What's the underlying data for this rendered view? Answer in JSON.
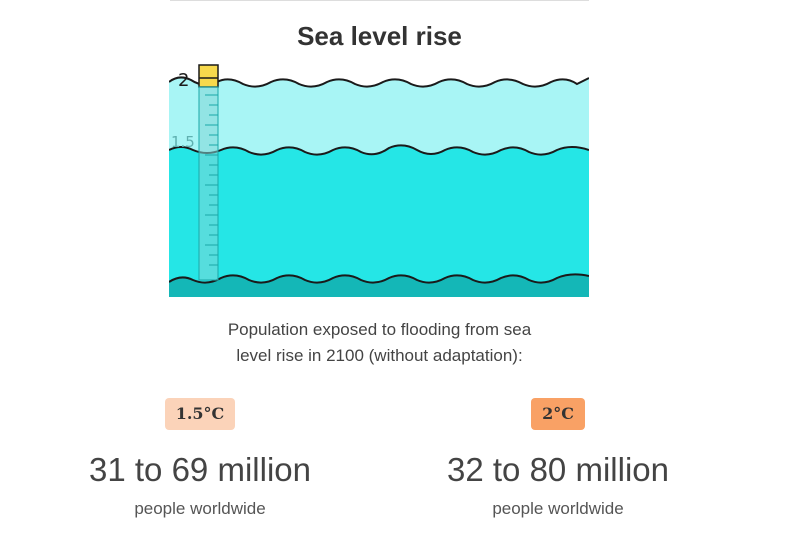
{
  "title": "Sea level rise",
  "illustration": {
    "gauge_labels": [
      "2",
      "1.5"
    ],
    "colors": {
      "water_2c": "#a8f5f5",
      "water_15c": "#25e6e6",
      "sea_floor": "#14b7b7",
      "gauge_marker": "#f7d94c",
      "wave_line": "#1a1a1a"
    }
  },
  "caption": {
    "line1": "Population exposed to flooding from sea",
    "line2": "level rise in 2100 (without adaptation):"
  },
  "scenarios": [
    {
      "badge": "1.5°C",
      "badge_color": "#fbd3b9",
      "range": "31 to 69 million",
      "unit": "people worldwide"
    },
    {
      "badge": "2°C",
      "badge_color": "#f9a165",
      "range": "32 to 80 million",
      "unit": "people worldwide"
    }
  ]
}
